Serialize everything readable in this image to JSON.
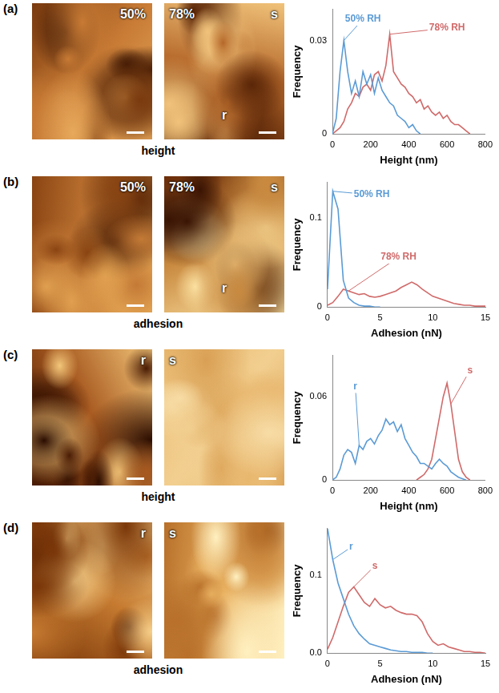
{
  "figure": {
    "rows": [
      {
        "letter": "(a)",
        "caption": "height",
        "images": [
          {
            "texts": [
              "50%"
            ]
          },
          {
            "texts": [
              "78%",
              "s",
              "r"
            ]
          }
        ]
      },
      {
        "letter": "(b)",
        "caption": "adhesion",
        "images": [
          {
            "texts": [
              "50%"
            ]
          },
          {
            "texts": [
              "78%",
              "s",
              "r"
            ]
          }
        ]
      },
      {
        "letter": "(c)",
        "caption": "height",
        "images": [
          {
            "texts": [
              "r"
            ]
          },
          {
            "texts": [
              "s"
            ]
          }
        ]
      },
      {
        "letter": "(d)",
        "caption": "adhesion",
        "images": [
          {
            "texts": [
              "r"
            ]
          },
          {
            "texts": [
              "s"
            ]
          }
        ]
      }
    ]
  },
  "chart_data": [
    {
      "type": "line",
      "x_label": "Height (nm)",
      "y_label": "Frequency",
      "xlim": [
        0,
        800
      ],
      "xticks": [
        0,
        200,
        400,
        600,
        800
      ],
      "ylim": [
        0,
        0.04
      ],
      "yticks": [
        0,
        0.03
      ],
      "grid": false,
      "series": [
        {
          "name": "50% RH",
          "color": "#5b9bd5",
          "x": [
            0,
            20,
            40,
            60,
            80,
            100,
            120,
            140,
            160,
            180,
            200,
            220,
            240,
            260,
            280,
            300,
            320,
            340,
            360,
            380,
            400,
            420,
            440,
            460
          ],
          "values": [
            0,
            0.005,
            0.02,
            0.03,
            0.02,
            0.013,
            0.017,
            0.012,
            0.02,
            0.016,
            0.019,
            0.013,
            0.018,
            0.014,
            0.012,
            0.01,
            0.009,
            0.006,
            0.005,
            0.004,
            0.002,
            0.003,
            0.001,
            0
          ]
        },
        {
          "name": "78% RH",
          "color": "#d06a6a",
          "x": [
            0,
            20,
            40,
            60,
            80,
            100,
            120,
            140,
            160,
            180,
            200,
            220,
            240,
            260,
            280,
            300,
            320,
            340,
            360,
            380,
            400,
            420,
            440,
            460,
            480,
            500,
            520,
            540,
            560,
            580,
            600,
            620,
            640,
            660,
            680,
            700,
            720
          ],
          "values": [
            0,
            0.001,
            0.002,
            0.004,
            0.008,
            0.01,
            0.013,
            0.012,
            0.015,
            0.016,
            0.014,
            0.019,
            0.02,
            0.017,
            0.022,
            0.032,
            0.02,
            0.018,
            0.016,
            0.015,
            0.013,
            0.012,
            0.01,
            0.011,
            0.008,
            0.009,
            0.007,
            0.006,
            0.007,
            0.005,
            0.006,
            0.004,
            0.003,
            0.003,
            0.002,
            0.001,
            0
          ]
        }
      ]
    },
    {
      "type": "line",
      "x_label": "Adhesion (nN)",
      "y_label": "Frequency",
      "xlim": [
        0,
        15
      ],
      "xticks": [
        0,
        5,
        10,
        15
      ],
      "ylim": [
        0,
        0.14
      ],
      "yticks": [
        0,
        0.1
      ],
      "grid": false,
      "series": [
        {
          "name": "50% RH",
          "color": "#5b9bd5",
          "x": [
            0,
            0.5,
            1,
            1.5,
            2,
            2.5,
            3,
            3.5,
            4,
            4.5,
            5
          ],
          "values": [
            0.02,
            0.13,
            0.11,
            0.03,
            0.01,
            0.005,
            0.002,
            0.001,
            0.001,
            0,
            0
          ]
        },
        {
          "name": "78% RH",
          "color": "#d06a6a",
          "x": [
            0,
            0.5,
            1,
            1.5,
            2,
            2.5,
            3,
            3.5,
            4,
            4.5,
            5,
            5.5,
            6,
            6.5,
            7,
            7.5,
            8,
            8.5,
            9,
            9.5,
            10,
            10.5,
            11,
            11.5,
            12,
            12.5,
            13,
            13.5,
            14,
            14.5,
            15
          ],
          "values": [
            0.002,
            0.005,
            0.012,
            0.02,
            0.018,
            0.016,
            0.014,
            0.015,
            0.012,
            0.011,
            0.012,
            0.014,
            0.016,
            0.018,
            0.022,
            0.025,
            0.028,
            0.025,
            0.02,
            0.016,
            0.012,
            0.01,
            0.008,
            0.006,
            0.004,
            0.003,
            0.002,
            0.002,
            0.001,
            0.001,
            0.001
          ]
        }
      ]
    },
    {
      "type": "line",
      "x_label": "Height (nm)",
      "y_label": "Frequency",
      "xlim": [
        0,
        800
      ],
      "xticks": [
        0,
        200,
        400,
        600,
        800
      ],
      "ylim": [
        0,
        0.09
      ],
      "yticks": [
        0,
        0.06
      ],
      "grid": false,
      "series": [
        {
          "name": "r",
          "color": "#5b9bd5",
          "x": [
            0,
            20,
            40,
            60,
            80,
            100,
            120,
            140,
            160,
            180,
            200,
            220,
            240,
            260,
            280,
            300,
            320,
            340,
            360,
            380,
            400,
            420,
            440,
            460,
            480,
            500,
            520,
            540,
            560,
            580,
            600,
            620,
            640,
            660,
            680,
            700
          ],
          "values": [
            0,
            0.002,
            0.008,
            0.018,
            0.022,
            0.02,
            0.012,
            0.025,
            0.022,
            0.028,
            0.03,
            0.026,
            0.032,
            0.036,
            0.044,
            0.04,
            0.042,
            0.035,
            0.04,
            0.03,
            0.025,
            0.02,
            0.017,
            0.012,
            0.012,
            0.01,
            0.008,
            0.012,
            0.015,
            0.012,
            0.01,
            0.006,
            0.004,
            0.002,
            0.001,
            0
          ]
        },
        {
          "name": "s",
          "color": "#d06a6a",
          "x": [
            440,
            460,
            480,
            500,
            520,
            540,
            560,
            580,
            600,
            620,
            640,
            660,
            680,
            700,
            720
          ],
          "values": [
            0,
            0.002,
            0.004,
            0.008,
            0.015,
            0.03,
            0.045,
            0.06,
            0.07,
            0.055,
            0.035,
            0.015,
            0.006,
            0.002,
            0
          ]
        }
      ]
    },
    {
      "type": "line",
      "x_label": "Adhesion (nN)",
      "y_label": "Frequency",
      "xlim": [
        0,
        15
      ],
      "xticks": [
        0,
        5,
        10,
        15
      ],
      "ylim": [
        0,
        0.16
      ],
      "yticks": [
        {
          "value": 0,
          "label": "0.0"
        },
        0.1
      ],
      "grid": false,
      "series": [
        {
          "name": "r",
          "color": "#5b9bd5",
          "x": [
            0,
            0.5,
            1,
            1.5,
            2,
            2.5,
            3,
            3.5,
            4,
            4.5,
            5,
            5.5,
            6,
            6.5,
            7,
            7.5,
            8,
            8.5,
            9,
            9.5,
            10
          ],
          "values": [
            0.16,
            0.12,
            0.09,
            0.07,
            0.05,
            0.035,
            0.025,
            0.018,
            0.012,
            0.01,
            0.008,
            0.006,
            0.004,
            0.003,
            0.002,
            0.002,
            0.001,
            0.001,
            0.001,
            0,
            0
          ]
        },
        {
          "name": "s",
          "color": "#d06a6a",
          "x": [
            0,
            0.5,
            1,
            1.5,
            2,
            2.5,
            3,
            3.5,
            4,
            4.5,
            5,
            5.5,
            6,
            6.5,
            7,
            7.5,
            8,
            8.5,
            9,
            9.5,
            10,
            10.5,
            11,
            11.5,
            12,
            12.5,
            13,
            13.5,
            14,
            14.5,
            15
          ],
          "values": [
            0.005,
            0.02,
            0.04,
            0.06,
            0.078,
            0.085,
            0.075,
            0.065,
            0.06,
            0.07,
            0.062,
            0.058,
            0.06,
            0.055,
            0.052,
            0.05,
            0.05,
            0.048,
            0.04,
            0.025,
            0.015,
            0.01,
            0.012,
            0.008,
            0.006,
            0.004,
            0.002,
            0.002,
            0.001,
            0.001,
            0
          ]
        }
      ]
    }
  ]
}
